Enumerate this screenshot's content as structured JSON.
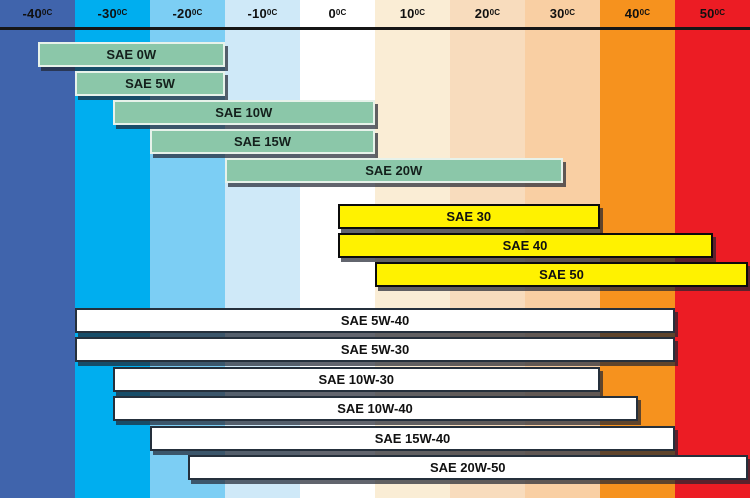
{
  "chart_data": {
    "type": "bar",
    "title": "",
    "xlabel": "",
    "ylabel": "",
    "x_axis": {
      "unit_suffix": "0C",
      "ticks": [
        "-40",
        "-30",
        "-20",
        "-10",
        "0",
        "10",
        "20",
        "30",
        "40",
        "50"
      ],
      "range": [
        -45,
        55
      ],
      "tick_position": "top"
    },
    "legend": "none",
    "grid": "off",
    "bands": [
      {
        "label": "-40",
        "color": "#4064AC"
      },
      {
        "label": "-30",
        "color": "#00AEEF"
      },
      {
        "label": "-20",
        "color": "#7CCEF4"
      },
      {
        "label": "-10",
        "color": "#CFE9F8"
      },
      {
        "label": "0",
        "color": "#FFFFFF"
      },
      {
        "label": "10",
        "color": "#FAEDD5"
      },
      {
        "label": "20",
        "color": "#F8DCBD"
      },
      {
        "label": "30",
        "color": "#F9CFA3"
      },
      {
        "label": "40",
        "color": "#F6921E"
      },
      {
        "label": "50",
        "color": "#EC1C24"
      }
    ],
    "bars": [
      {
        "label": "SAE 0W",
        "group": "winter",
        "temp_min": -40,
        "temp_max": -15
      },
      {
        "label": "SAE 5W",
        "group": "winter",
        "temp_min": -35,
        "temp_max": -15
      },
      {
        "label": "SAE 10W",
        "group": "winter",
        "temp_min": -30,
        "temp_max": 5
      },
      {
        "label": "SAE 15W",
        "group": "winter",
        "temp_min": -25,
        "temp_max": 5
      },
      {
        "label": "SAE 20W",
        "group": "winter",
        "temp_min": -15,
        "temp_max": 30
      },
      {
        "label": "SAE 30",
        "group": "hot",
        "temp_min": 0,
        "temp_max": 35
      },
      {
        "label": "SAE 40",
        "group": "hot",
        "temp_min": 0,
        "temp_max": 50
      },
      {
        "label": "SAE 50",
        "group": "hot",
        "temp_min": 5,
        "temp_max": 55
      },
      {
        "label": "SAE 5W-40",
        "group": "multigrade",
        "temp_min": -35,
        "temp_max": 45
      },
      {
        "label": "SAE 5W-30",
        "group": "multigrade",
        "temp_min": -35,
        "temp_max": 45
      },
      {
        "label": "SAE 10W-30",
        "group": "multigrade",
        "temp_min": -30,
        "temp_max": 35
      },
      {
        "label": "SAE 10W-40",
        "group": "multigrade",
        "temp_min": -30,
        "temp_max": 40
      },
      {
        "label": "SAE 15W-40",
        "group": "multigrade",
        "temp_min": -25,
        "temp_max": 45
      },
      {
        "label": "SAE 20W-50",
        "group": "multigrade",
        "temp_min": -20,
        "temp_max": 55
      }
    ],
    "styles": {
      "winter": {
        "fill": "#8BC7A9"
      },
      "hot": {
        "fill": "#FFF200"
      },
      "multigrade": {
        "fill": "#FFFFFF"
      }
    },
    "axis_line_color": "#161616"
  }
}
